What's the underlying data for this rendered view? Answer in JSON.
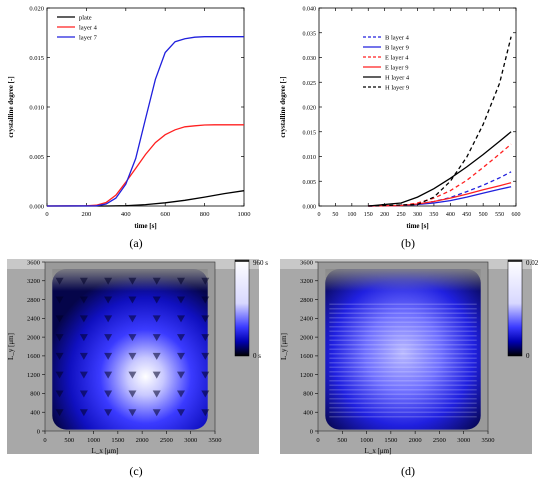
{
  "panel_labels": {
    "a": "(a)",
    "b": "(b)",
    "c": "(c)",
    "d": "(d)"
  },
  "colors": {
    "black": "#000000",
    "red": "#ff2020",
    "blue": "#2020dd",
    "map_blue": "#1a1af0",
    "map_white": "#ffffff",
    "map_black": "#000000",
    "frame_gray": "#a8a8a8"
  },
  "chart_data": [
    {
      "type": "line",
      "panel": "(a)",
      "xlabel": "time [s]",
      "ylabel": "crystalline degree [-]",
      "xlim": [
        0,
        1000
      ],
      "ylim": [
        0,
        0.02
      ],
      "xticks": [
        "0",
        "200",
        "400",
        "600",
        "800",
        "1000"
      ],
      "yticks": [
        "0.000",
        "0.005",
        "0.010",
        "0.015",
        "0.020"
      ],
      "legend_position": "top-left",
      "series": [
        {
          "name": "plate",
          "color": "#000000",
          "dash": "solid",
          "x": [
            0,
            300,
            400,
            500,
            600,
            700,
            800,
            900,
            1000
          ],
          "y": [
            0,
            0,
            3e-05,
            0.00014,
            0.00032,
            0.00058,
            0.0009,
            0.00125,
            0.00155
          ]
        },
        {
          "name": "layer 4",
          "color": "#ff2020",
          "dash": "solid",
          "x": [
            0,
            200,
            250,
            300,
            350,
            400,
            450,
            500,
            550,
            600,
            650,
            700,
            750,
            800,
            850,
            900,
            950,
            1000
          ],
          "y": [
            0,
            2e-05,
            8e-05,
            0.00035,
            0.0011,
            0.0024,
            0.0038,
            0.0052,
            0.0064,
            0.0072,
            0.0077,
            0.008,
            0.0081,
            0.00818,
            0.0082,
            0.0082,
            0.0082,
            0.0082
          ]
        },
        {
          "name": "layer 7",
          "color": "#2020dd",
          "dash": "solid",
          "x": [
            0,
            250,
            300,
            350,
            400,
            450,
            500,
            550,
            600,
            650,
            700,
            750,
            800,
            850,
            900,
            950,
            1000
          ],
          "y": [
            0,
            2e-05,
            0.0002,
            0.0008,
            0.0022,
            0.0048,
            0.0088,
            0.0128,
            0.0155,
            0.0166,
            0.0169,
            0.01705,
            0.0171,
            0.0171,
            0.0171,
            0.0171,
            0.0171
          ]
        }
      ]
    },
    {
      "type": "line",
      "panel": "(b)",
      "xlabel": "time [s]",
      "ylabel": "crystalline degree [-]",
      "xlim": [
        0,
        600
      ],
      "ylim": [
        0,
        0.04
      ],
      "xticks": [
        "0",
        "50",
        "100",
        "150",
        "200",
        "250",
        "300",
        "350",
        "400",
        "450",
        "500",
        "550",
        "600"
      ],
      "yticks": [
        "0.000",
        "0.005",
        "0.010",
        "0.015",
        "0.020",
        "0.025",
        "0.030",
        "0.035",
        "0.040"
      ],
      "legend_position": "top-left",
      "series": [
        {
          "name": "B layer 4",
          "color": "#2020dd",
          "dash": "dashed",
          "x": [
            150,
            250,
            300,
            350,
            400,
            450,
            500,
            550,
            585
          ],
          "y": [
            0,
            0.0001,
            0.0004,
            0.0009,
            0.0017,
            0.0029,
            0.0042,
            0.0057,
            0.0069
          ]
        },
        {
          "name": "B layer 9",
          "color": "#2020dd",
          "dash": "solid",
          "x": [
            150,
            250,
            300,
            350,
            400,
            450,
            500,
            550,
            585
          ],
          "y": [
            0,
            0.0001,
            0.0003,
            0.0006,
            0.0011,
            0.0018,
            0.0026,
            0.0034,
            0.0039
          ]
        },
        {
          "name": "E layer 4",
          "color": "#ff2020",
          "dash": "dashed",
          "x": [
            150,
            250,
            300,
            350,
            400,
            450,
            500,
            550,
            585
          ],
          "y": [
            0,
            0.0001,
            0.0006,
            0.0016,
            0.0031,
            0.0052,
            0.0078,
            0.0105,
            0.0125
          ]
        },
        {
          "name": "E layer 9",
          "color": "#ff2020",
          "dash": "solid",
          "x": [
            150,
            250,
            300,
            350,
            400,
            450,
            500,
            550,
            585
          ],
          "y": [
            0,
            0.0001,
            0.0004,
            0.0009,
            0.0016,
            0.0024,
            0.0033,
            0.0041,
            0.0047
          ]
        },
        {
          "name": "H layer 4",
          "color": "#000000",
          "dash": "solid",
          "x": [
            150,
            250,
            300,
            350,
            400,
            450,
            500,
            550,
            585
          ],
          "y": [
            0,
            0.0006,
            0.0018,
            0.0035,
            0.0056,
            0.0079,
            0.0104,
            0.0131,
            0.015
          ]
        },
        {
          "name": "H layer 9",
          "color": "#000000",
          "dash": "dashed",
          "x": [
            150,
            300,
            350,
            400,
            450,
            500,
            550,
            585
          ],
          "y": [
            0,
            0.0003,
            0.0018,
            0.005,
            0.0099,
            0.0165,
            0.0248,
            0.0342
          ]
        }
      ]
    },
    {
      "type": "heatmap",
      "panel": "(c)",
      "xlabel": "L_x [μm]",
      "ylabel": "L_y [μm]",
      "xticks": [
        "0",
        "500",
        "1000",
        "1500",
        "2000",
        "2500",
        "3000",
        "3500"
      ],
      "yticks": [
        "0",
        "400",
        "800",
        "1200",
        "1600",
        "2000",
        "2400",
        "2800",
        "3200",
        "3600"
      ],
      "xlim": [
        0,
        3500
      ],
      "ylim": [
        0,
        3600
      ],
      "colorbar": {
        "max_label": "960 s",
        "min_label": "0 s",
        "max": 960,
        "min": 0
      },
      "hotspot": {
        "x": 2200,
        "y": 1300
      }
    },
    {
      "type": "heatmap",
      "panel": "(d)",
      "xlabel": "L_x [μm]",
      "ylabel": "L_y [μm]",
      "xticks": [
        "0",
        "500",
        "1000",
        "1500",
        "2000",
        "2500",
        "3000",
        "3500"
      ],
      "yticks": [
        "0",
        "400",
        "800",
        "1200",
        "1600",
        "2000",
        "2400",
        "2800",
        "3200",
        "3600"
      ],
      "xlim": [
        0,
        3500
      ],
      "ylim": [
        0,
        3600
      ],
      "colorbar": {
        "max_label": "0.02",
        "min_label": "0",
        "max": 0.02,
        "min": 0
      },
      "hotspot": {
        "x": 1750,
        "y": 1700
      }
    }
  ]
}
